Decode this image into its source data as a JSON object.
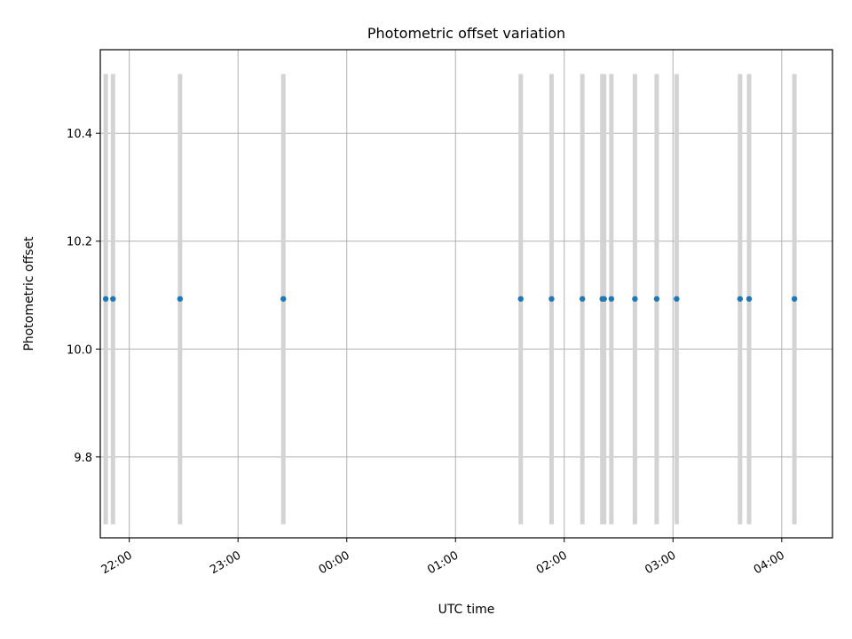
{
  "chart_data": {
    "type": "scatter",
    "title": "Photometric offset variation",
    "xlabel": "UTC time",
    "ylabel": "Photometric offset",
    "xlim": [
      "21:44",
      "04:28"
    ],
    "ylim": [
      9.65,
      10.555
    ],
    "grid": true,
    "x_ticks": [
      "22:00",
      "23:00",
      "00:00",
      "01:00",
      "02:00",
      "03:00",
      "04:00"
    ],
    "y_ticks": [
      "9.8",
      "10.0",
      "10.2",
      "10.4"
    ],
    "points": {
      "x": [
        "21:47",
        "21:51",
        "22:28",
        "23:25",
        "01:36",
        "01:53",
        "02:10",
        "02:21",
        "02:22",
        "02:26",
        "02:39",
        "02:51",
        "03:02",
        "03:37",
        "03:42",
        "04:07"
      ],
      "y": [
        10.093,
        10.093,
        10.093,
        10.093,
        10.093,
        10.093,
        10.093,
        10.093,
        10.093,
        10.093,
        10.093,
        10.093,
        10.093,
        10.093,
        10.093,
        10.093
      ]
    },
    "vertical_bands": {
      "x": [
        "21:47",
        "21:51",
        "22:28",
        "23:25",
        "01:36",
        "01:53",
        "02:10",
        "02:21",
        "02:22",
        "02:26",
        "02:39",
        "02:51",
        "03:02",
        "03:37",
        "03:42",
        "04:07"
      ],
      "ymin": 9.675,
      "ymax": 10.51
    },
    "colors": {
      "points": "#1f77b4",
      "bands": "#d3d3d3",
      "grid": "#b0b0b0",
      "axes": "#000000"
    }
  }
}
